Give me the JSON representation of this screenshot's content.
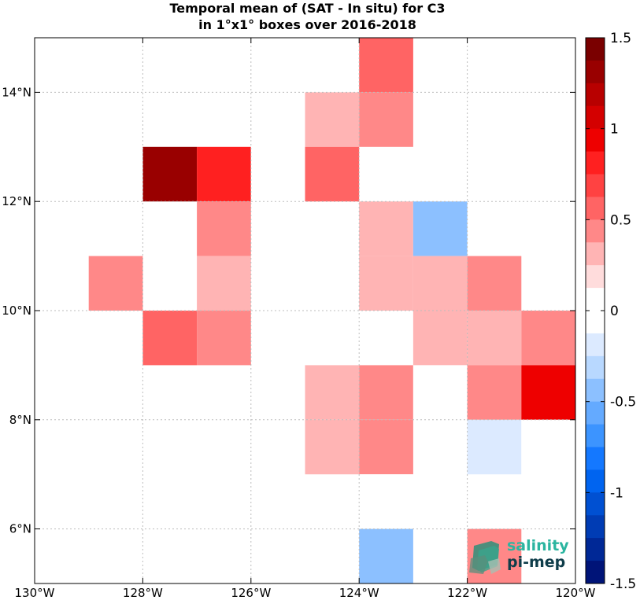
{
  "chart_data": {
    "type": "heatmap",
    "title": [
      "Temporal mean of (SAT - In situ) for C3",
      "in 1°x1° boxes over 2016-2018"
    ],
    "xlim": [
      -130,
      -120
    ],
    "ylim": [
      5,
      15
    ],
    "x_ticks": [
      {
        "value": -130,
        "label": "130°W"
      },
      {
        "value": -128,
        "label": "128°W"
      },
      {
        "value": -126,
        "label": "126°W"
      },
      {
        "value": -124,
        "label": "124°W"
      },
      {
        "value": -122,
        "label": "122°W"
      },
      {
        "value": -120,
        "label": "120°W"
      }
    ],
    "y_ticks": [
      {
        "value": 6,
        "label": "6°N"
      },
      {
        "value": 8,
        "label": "8°N"
      },
      {
        "value": 10,
        "label": "10°N"
      },
      {
        "value": 12,
        "label": "12°N"
      },
      {
        "value": 14,
        "label": "14°N"
      }
    ],
    "grid": true,
    "cells": [
      {
        "lon": -124,
        "lat": 14,
        "value": 0.6
      },
      {
        "lon": -125,
        "lat": 13,
        "value": 0.3
      },
      {
        "lon": -124,
        "lat": 13,
        "value": 0.5
      },
      {
        "lon": -128,
        "lat": 12,
        "value": 1.3
      },
      {
        "lon": -127,
        "lat": 12,
        "value": 0.8
      },
      {
        "lon": -126,
        "lat": 12,
        "value": 0.1
      },
      {
        "lon": -125,
        "lat": 12,
        "value": 0.6
      },
      {
        "lon": -127,
        "lat": 11,
        "value": 0.5
      },
      {
        "lon": -124,
        "lat": 11,
        "value": 0.3
      },
      {
        "lon": -123,
        "lat": 11,
        "value": -0.4
      },
      {
        "lon": -129,
        "lat": 10,
        "value": 0.5
      },
      {
        "lon": -127,
        "lat": 10,
        "value": 0.3
      },
      {
        "lon": -124,
        "lat": 10,
        "value": 0.3
      },
      {
        "lon": -123,
        "lat": 10,
        "value": 0.3
      },
      {
        "lon": -122,
        "lat": 10,
        "value": 0.4
      },
      {
        "lon": -128,
        "lat": 9,
        "value": 0.6
      },
      {
        "lon": -127,
        "lat": 9,
        "value": 0.4
      },
      {
        "lon": -125,
        "lat": 9,
        "value": 0.1
      },
      {
        "lon": -124,
        "lat": 9,
        "value": 0.1
      },
      {
        "lon": -123,
        "lat": 9,
        "value": 0.3
      },
      {
        "lon": -122,
        "lat": 9,
        "value": 0.3
      },
      {
        "lon": -121,
        "lat": 9,
        "value": 0.5
      },
      {
        "lon": -125,
        "lat": 8,
        "value": 0.3
      },
      {
        "lon": -124,
        "lat": 8,
        "value": 0.5
      },
      {
        "lon": -123,
        "lat": 8,
        "value": 0.1
      },
      {
        "lon": -122,
        "lat": 8,
        "value": 0.4
      },
      {
        "lon": -121,
        "lat": 8,
        "value": 0.9
      },
      {
        "lon": -125,
        "lat": 7,
        "value": 0.3
      },
      {
        "lon": -124,
        "lat": 7,
        "value": 0.5
      },
      {
        "lon": -122,
        "lat": 7,
        "value": -0.2
      },
      {
        "lon": -121,
        "lat": 7,
        "value": -0.1
      },
      {
        "lon": -124,
        "lat": 6,
        "value": 0.1
      },
      {
        "lon": -124,
        "lat": 5,
        "value": -0.4
      },
      {
        "lon": -122,
        "lat": 5,
        "value": 0.5
      }
    ],
    "colorbar": {
      "range": [
        -1.5,
        1.5
      ],
      "levels": 24,
      "ticks": [
        {
          "value": 1.5,
          "label": "1.5"
        },
        {
          "value": 1,
          "label": "1"
        },
        {
          "value": 0.5,
          "label": "0.5"
        },
        {
          "value": 0,
          "label": "0"
        },
        {
          "value": -0.5,
          "label": "-0.5"
        },
        {
          "value": -1,
          "label": "-1"
        },
        {
          "value": -1.5,
          "label": "-1.5"
        }
      ],
      "colors_top_to_bottom": [
        "#7a0000",
        "#990000",
        "#b80000",
        "#d40000",
        "#ee0000",
        "#ff2020",
        "#ff4242",
        "#ff6464",
        "#ff8888",
        "#ffb4b4",
        "#ffdcdc",
        "#ffffff",
        "#ffffff",
        "#dceaff",
        "#b8d8ff",
        "#8cc0ff",
        "#64aaff",
        "#3c94ff",
        "#1478ff",
        "#0064f0",
        "#0050d2",
        "#003cb4",
        "#002896",
        "#001478"
      ]
    }
  },
  "logo": {
    "line1": "salinity",
    "line2": "pi-mep"
  }
}
